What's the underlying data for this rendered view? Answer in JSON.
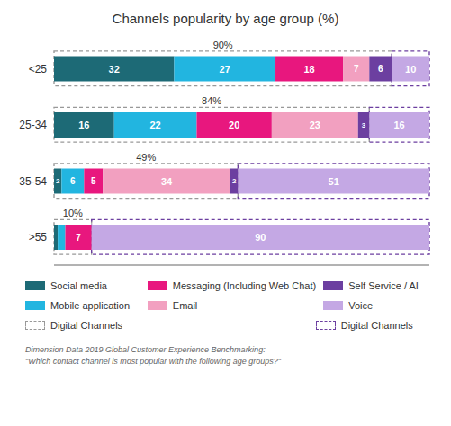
{
  "chart_data": {
    "type": "bar",
    "orientation": "horizontal",
    "stacked": true,
    "data_labels": true,
    "tick_labels": "y",
    "grid": false,
    "title": "Channels popularity by age group (%)",
    "categories": [
      "<25",
      "25-34",
      "35-54",
      ">55"
    ],
    "xlim": [
      0,
      100
    ],
    "series": [
      {
        "name": "Social media",
        "color": "#1d6a76",
        "values": [
          32,
          16,
          2,
          1
        ],
        "value_labels": [
          "32",
          "16",
          "2",
          null
        ]
      },
      {
        "name": "Mobile application",
        "color": "#22b5e0",
        "values": [
          27,
          22,
          6,
          2
        ],
        "value_labels": [
          "27",
          "22",
          "6",
          null
        ]
      },
      {
        "name": "Messaging (Including Web Chat)",
        "color": "#e8177e",
        "values": [
          18,
          20,
          5,
          7
        ]
      },
      {
        "name": "Email",
        "color": "#f2a0c0",
        "values": [
          7,
          23,
          34,
          0
        ],
        "value_labels": [
          "7",
          "23",
          "34",
          null
        ]
      },
      {
        "name": "Self Service / AI",
        "color": "#6c3fa0",
        "values": [
          6,
          3,
          2,
          0
        ],
        "value_labels": [
          "6",
          "3",
          "2",
          null
        ]
      },
      {
        "name": "Voice",
        "color": "#c4a8e4",
        "values": [
          10,
          16,
          51,
          90
        ]
      }
    ],
    "digital_channels": {
      "name": "Digital Channels",
      "color": "#999999",
      "values": [
        90,
        84,
        49,
        10
      ],
      "value_labels": [
        "90%",
        "84%",
        "49%",
        "10%"
      ]
    },
    "voice_channels": {
      "name": "Digital Channels",
      "color": "#6c3fa0"
    },
    "footnote": [
      "Dimension Data 2019 Global Customer Experience Benchmarking:",
      "\"Which contact channel is most popular with the following age groups?\""
    ]
  }
}
